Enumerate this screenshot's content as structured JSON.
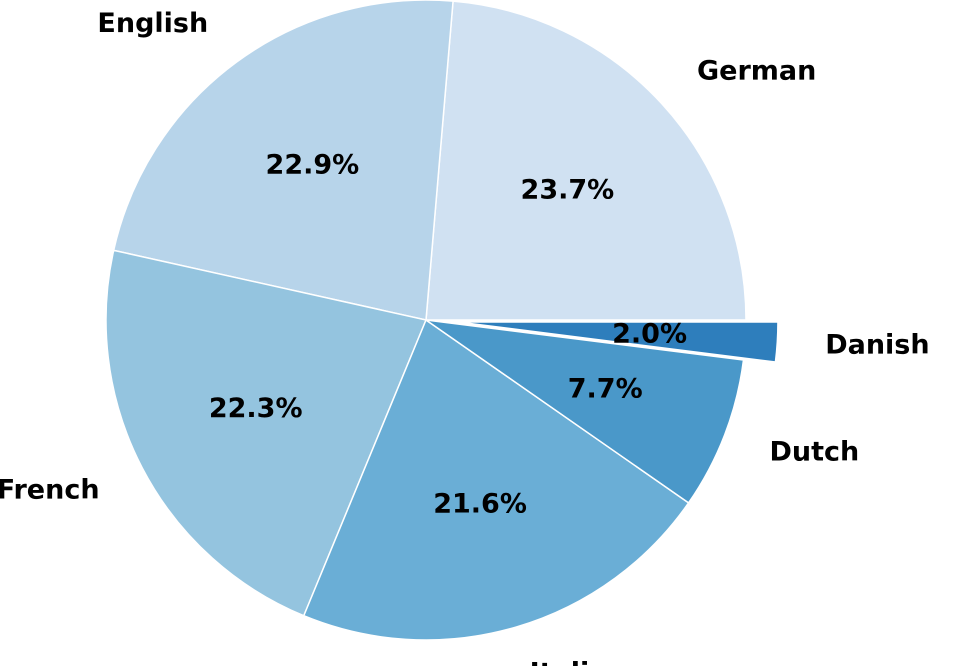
{
  "chart_data": {
    "type": "pie",
    "title": "",
    "slices": [
      {
        "label": "German",
        "pct_text": "23.7%",
        "value": 23.7,
        "color": "#d0e1f2",
        "exploded": false
      },
      {
        "label": "English",
        "pct_text": "22.9%",
        "value": 22.9,
        "color": "#b7d4ea",
        "exploded": false
      },
      {
        "label": "French",
        "pct_text": "22.3%",
        "value": 22.3,
        "color": "#94c4df",
        "exploded": false
      },
      {
        "label": "Italian",
        "pct_text": "21.6%",
        "value": 21.6,
        "color": "#6aaed6",
        "exploded": false
      },
      {
        "label": "Dutch",
        "pct_text": "7.7%",
        "value": 7.7,
        "color": "#4a98c9",
        "exploded": false
      },
      {
        "label": "Danish",
        "pct_text": "2.0%",
        "value": 2.0,
        "color": "#2e7ebc",
        "exploded": true
      }
    ],
    "start": "3 o'clock",
    "direction": "counterclockwise"
  }
}
